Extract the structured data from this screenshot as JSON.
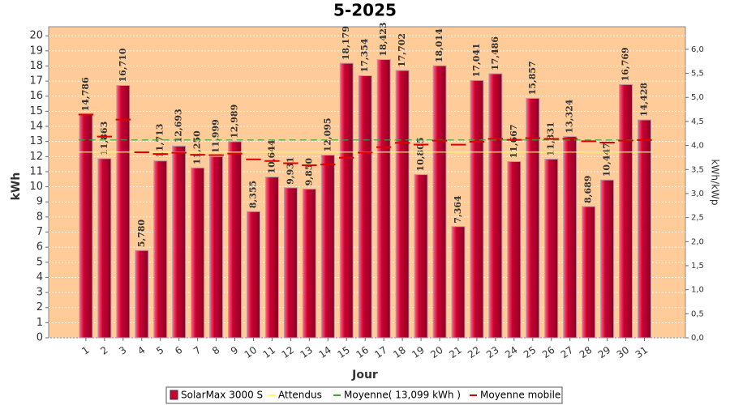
{
  "chart_data": {
    "type": "bar",
    "title": "5-2025",
    "xlabel": "Jour",
    "ylabel": "kWh",
    "y2label": "kWh/kWp",
    "categories": [
      "1",
      "2",
      "3",
      "4",
      "5",
      "6",
      "7",
      "8",
      "9",
      "10",
      "11",
      "12",
      "13",
      "14",
      "15",
      "16",
      "17",
      "18",
      "19",
      "20",
      "21",
      "22",
      "23",
      "24",
      "25",
      "26",
      "27",
      "28",
      "29",
      "30",
      "31"
    ],
    "series": [
      {
        "name": "SolarMax 3000 S",
        "color": "#cc0033",
        "values": [
          14.786,
          11.863,
          16.71,
          5.78,
          11.713,
          12.693,
          11.25,
          11.999,
          12.989,
          8.355,
          10.644,
          9.931,
          9.85,
          12.095,
          18.179,
          17.354,
          18.423,
          17.702,
          10.805,
          18.014,
          7.364,
          17.041,
          17.486,
          11.667,
          15.857,
          11.831,
          13.324,
          8.689,
          10.447,
          16.769,
          14.428
        ],
        "value_labels": [
          "14,786",
          "11,863",
          "16,710",
          "5,780",
          "11,713",
          "12,693",
          "11,250",
          "11,999",
          "12,989",
          "8,355",
          "10,644",
          "9,931",
          "9,850",
          "12,095",
          "18,179",
          "17,354",
          "18,423",
          "17,702",
          "10,805",
          "18,014",
          "7,364",
          "17,041",
          "17,486",
          "11,667",
          "15,857",
          "11,831",
          "13,324",
          "8,689",
          "10,447",
          "16,769",
          "14,428"
        ]
      }
    ],
    "expected": {
      "name": "Attendus",
      "color": "#ffff66",
      "value": 12.3
    },
    "average": {
      "name": "Moyenne( 13,099 kWh )",
      "color": "#33aa33",
      "value": 13.099
    },
    "moving_average": {
      "name": "Moyenne mobile",
      "color": "#dd0000",
      "values": [
        14.786,
        13.325,
        14.453,
        12.285,
        12.17,
        12.258,
        12.114,
        12.099,
        12.198,
        11.814,
        11.707,
        11.559,
        11.428,
        11.476,
        11.922,
        12.262,
        12.624,
        12.906,
        12.796,
        13.057,
        12.786,
        12.979,
        13.175,
        13.112,
        13.222,
        13.169,
        13.174,
        13.014,
        12.926,
        13.054,
        13.098
      ]
    },
    "ylim": [
      0,
      20.6
    ],
    "yticks": [
      0,
      1,
      2,
      3,
      4,
      5,
      6,
      7,
      8,
      9,
      10,
      11,
      12,
      13,
      14,
      15,
      16,
      17,
      18,
      19,
      20
    ],
    "y2lim": [
      0,
      6.47
    ],
    "y2ticks": [
      {
        "value": 0,
        "label": "0,0"
      },
      {
        "value": 0.5,
        "label": "0,5"
      },
      {
        "value": 1,
        "label": "1,0"
      },
      {
        "value": 1.5,
        "label": "1,5"
      },
      {
        "value": 2,
        "label": "2,0"
      },
      {
        "value": 2.5,
        "label": "2,5"
      },
      {
        "value": 3,
        "label": "3,0"
      },
      {
        "value": 3.5,
        "label": "3,5"
      },
      {
        "value": 4,
        "label": "4,0"
      },
      {
        "value": 4.5,
        "label": "4,5"
      },
      {
        "value": 5,
        "label": "5,0"
      },
      {
        "value": 5.5,
        "label": "5,5"
      },
      {
        "value": 6,
        "label": "6,0"
      }
    ],
    "grid": true,
    "background": "#ffcc99"
  }
}
